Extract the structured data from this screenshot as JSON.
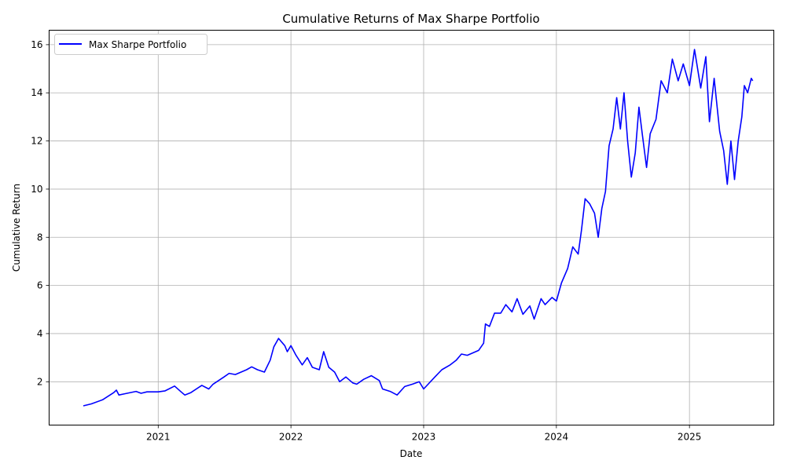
{
  "chart_data": {
    "type": "line",
    "title": "Cumulative Returns of Max Sharpe Portfolio",
    "xlabel": "Date",
    "ylabel": "Cumulative Return",
    "x_ticks": [
      "2021",
      "2022",
      "2023",
      "2024",
      "2025"
    ],
    "y_ticks": [
      2,
      4,
      6,
      8,
      10,
      12,
      14,
      16
    ],
    "xlim": [
      "2020-03-07",
      "2025-08-21"
    ],
    "ylim": [
      0.2,
      16.6
    ],
    "grid": true,
    "legend": "top-left",
    "series": [
      {
        "name": "Max Sharpe Portfolio",
        "color": "#0000ff",
        "points": [
          [
            "2020-06-09",
            1.0
          ],
          [
            "2020-07-01",
            1.08
          ],
          [
            "2020-08-01",
            1.25
          ],
          [
            "2020-09-01",
            1.55
          ],
          [
            "2020-09-08",
            1.65
          ],
          [
            "2020-09-15",
            1.45
          ],
          [
            "2020-10-01",
            1.5
          ],
          [
            "2020-11-01",
            1.6
          ],
          [
            "2020-11-15",
            1.52
          ],
          [
            "2020-12-01",
            1.58
          ],
          [
            "2021-01-01",
            1.58
          ],
          [
            "2021-01-20",
            1.62
          ],
          [
            "2021-02-15",
            1.82
          ],
          [
            "2021-03-05",
            1.58
          ],
          [
            "2021-03-15",
            1.45
          ],
          [
            "2021-04-01",
            1.55
          ],
          [
            "2021-05-01",
            1.85
          ],
          [
            "2021-05-20",
            1.7
          ],
          [
            "2021-06-01",
            1.9
          ],
          [
            "2021-07-01",
            2.2
          ],
          [
            "2021-07-15",
            2.35
          ],
          [
            "2021-08-01",
            2.3
          ],
          [
            "2021-09-01",
            2.5
          ],
          [
            "2021-09-15",
            2.62
          ],
          [
            "2021-10-01",
            2.5
          ],
          [
            "2021-10-20",
            2.4
          ],
          [
            "2021-11-05",
            2.9
          ],
          [
            "2021-11-15",
            3.45
          ],
          [
            "2021-11-28",
            3.8
          ],
          [
            "2021-12-15",
            3.5
          ],
          [
            "2021-12-22",
            3.25
          ],
          [
            "2022-01-01",
            3.5
          ],
          [
            "2022-01-15",
            3.1
          ],
          [
            "2022-02-01",
            2.7
          ],
          [
            "2022-02-15",
            3.0
          ],
          [
            "2022-03-01",
            2.6
          ],
          [
            "2022-03-20",
            2.5
          ],
          [
            "2022-04-01",
            3.25
          ],
          [
            "2022-04-15",
            2.6
          ],
          [
            "2022-05-01",
            2.4
          ],
          [
            "2022-05-15",
            2.0
          ],
          [
            "2022-06-01",
            2.2
          ],
          [
            "2022-06-20",
            1.95
          ],
          [
            "2022-07-01",
            1.9
          ],
          [
            "2022-07-20",
            2.1
          ],
          [
            "2022-08-10",
            2.25
          ],
          [
            "2022-09-01",
            2.05
          ],
          [
            "2022-09-10",
            1.7
          ],
          [
            "2022-10-01",
            1.6
          ],
          [
            "2022-10-20",
            1.45
          ],
          [
            "2022-11-10",
            1.8
          ],
          [
            "2022-12-01",
            1.9
          ],
          [
            "2022-12-20",
            2.0
          ],
          [
            "2023-01-01",
            1.7
          ],
          [
            "2023-02-01",
            2.2
          ],
          [
            "2023-02-20",
            2.5
          ],
          [
            "2023-03-15",
            2.7
          ],
          [
            "2023-04-01",
            2.9
          ],
          [
            "2023-04-15",
            3.15
          ],
          [
            "2023-05-01",
            3.1
          ],
          [
            "2023-06-01",
            3.3
          ],
          [
            "2023-06-15",
            3.6
          ],
          [
            "2023-06-20",
            4.4
          ],
          [
            "2023-07-01",
            4.3
          ],
          [
            "2023-07-15",
            4.85
          ],
          [
            "2023-08-01",
            4.85
          ],
          [
            "2023-08-15",
            5.2
          ],
          [
            "2023-09-01",
            4.9
          ],
          [
            "2023-09-15",
            5.45
          ],
          [
            "2023-10-01",
            4.8
          ],
          [
            "2023-10-20",
            5.15
          ],
          [
            "2023-11-01",
            4.6
          ],
          [
            "2023-11-20",
            5.45
          ],
          [
            "2023-12-01",
            5.2
          ],
          [
            "2023-12-20",
            5.5
          ],
          [
            "2024-01-01",
            5.35
          ],
          [
            "2024-01-15",
            6.1
          ],
          [
            "2024-02-01",
            6.7
          ],
          [
            "2024-02-15",
            7.6
          ],
          [
            "2024-03-01",
            7.3
          ],
          [
            "2024-03-10",
            8.3
          ],
          [
            "2024-03-20",
            9.6
          ],
          [
            "2024-04-01",
            9.4
          ],
          [
            "2024-04-15",
            9.0
          ],
          [
            "2024-04-25",
            8.0
          ],
          [
            "2024-05-05",
            9.2
          ],
          [
            "2024-05-15",
            9.9
          ],
          [
            "2024-05-25",
            11.8
          ],
          [
            "2024-06-05",
            12.5
          ],
          [
            "2024-06-15",
            13.8
          ],
          [
            "2024-06-25",
            12.5
          ],
          [
            "2024-07-05",
            14.0
          ],
          [
            "2024-07-15",
            12.0
          ],
          [
            "2024-07-25",
            10.5
          ],
          [
            "2024-08-05",
            11.5
          ],
          [
            "2024-08-15",
            13.4
          ],
          [
            "2024-08-25",
            12.2
          ],
          [
            "2024-09-05",
            10.9
          ],
          [
            "2024-09-15",
            12.3
          ],
          [
            "2024-10-01",
            12.9
          ],
          [
            "2024-10-15",
            14.5
          ],
          [
            "2024-11-01",
            14.0
          ],
          [
            "2024-11-15",
            15.4
          ],
          [
            "2024-12-01",
            14.5
          ],
          [
            "2024-12-15",
            15.2
          ],
          [
            "2025-01-01",
            14.3
          ],
          [
            "2025-01-15",
            15.8
          ],
          [
            "2025-02-01",
            14.2
          ],
          [
            "2025-02-15",
            15.5
          ],
          [
            "2025-02-25",
            12.8
          ],
          [
            "2025-03-10",
            14.6
          ],
          [
            "2025-03-25",
            12.4
          ],
          [
            "2025-04-05",
            11.6
          ],
          [
            "2025-04-15",
            10.2
          ],
          [
            "2025-04-25",
            12.0
          ],
          [
            "2025-05-05",
            10.4
          ],
          [
            "2025-05-15",
            12.0
          ],
          [
            "2025-05-25",
            13.0
          ],
          [
            "2025-06-01",
            14.3
          ],
          [
            "2025-06-10",
            14.0
          ],
          [
            "2025-06-20",
            14.6
          ],
          [
            "2025-06-24",
            14.5
          ]
        ]
      }
    ]
  }
}
